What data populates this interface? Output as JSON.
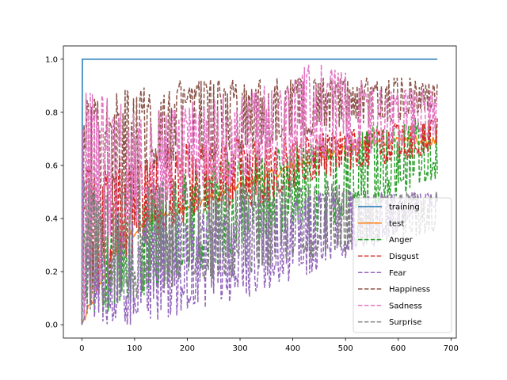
{
  "chart_data": {
    "type": "line",
    "title": "",
    "xlabel": "",
    "ylabel": "",
    "xlim": [
      -35,
      710
    ],
    "ylim": [
      -0.05,
      1.05
    ],
    "x_ticks": [
      0,
      100,
      200,
      300,
      400,
      500,
      600,
      700
    ],
    "y_ticks": [
      0.0,
      0.2,
      0.4,
      0.6,
      0.8,
      1.0
    ],
    "x_tick_labels": [
      "0",
      "100",
      "200",
      "300",
      "400",
      "500",
      "600",
      "700"
    ],
    "y_tick_labels": [
      "0.0",
      "0.2",
      "0.4",
      "0.6",
      "0.8",
      "1.0"
    ],
    "grid": false,
    "legend_position": "lower right",
    "n_points": 675,
    "series": [
      {
        "name": "training",
        "color": "#1f77b4",
        "dash": false,
        "points": [
          [
            0,
            0.0
          ],
          [
            1,
            1.0
          ],
          [
            674,
            1.0
          ]
        ]
      },
      {
        "name": "test",
        "color": "#ff7f0e",
        "dash": false,
        "points": [
          [
            0,
            0.0
          ],
          [
            2,
            0.3
          ],
          [
            10,
            0.4
          ],
          [
            50,
            0.45
          ],
          [
            100,
            0.5
          ],
          [
            200,
            0.55
          ],
          [
            300,
            0.6
          ],
          [
            400,
            0.65
          ],
          [
            500,
            0.68
          ],
          [
            600,
            0.7
          ],
          [
            674,
            0.69
          ]
        ]
      },
      {
        "name": "Anger",
        "color": "#2ca02c",
        "dash": true,
        "noise": {
          "low": [
            0.0,
            0.1,
            0.2,
            0.3,
            0.35,
            0.45,
            0.55
          ],
          "high": [
            0.4,
            0.5,
            0.6,
            0.65,
            0.7,
            0.75,
            0.8
          ]
        }
      },
      {
        "name": "Disgust",
        "color": "#d62728",
        "dash": true,
        "noise": {
          "low": [
            0.0,
            0.3,
            0.4,
            0.45,
            0.55,
            0.6,
            0.65
          ],
          "high": [
            0.6,
            0.65,
            0.7,
            0.7,
            0.72,
            0.75,
            0.78
          ]
        }
      },
      {
        "name": "Fear",
        "color": "#9467bd",
        "dash": true,
        "noise": {
          "low": [
            0.0,
            0.0,
            0.05,
            0.1,
            0.2,
            0.3,
            0.45
          ],
          "high": [
            0.3,
            0.4,
            0.45,
            0.5,
            0.5,
            0.5,
            0.5
          ]
        }
      },
      {
        "name": "Happiness",
        "color": "#8c564b",
        "dash": true,
        "noise": {
          "low": [
            0.0,
            0.55,
            0.6,
            0.65,
            0.7,
            0.75,
            0.8
          ],
          "high": [
            0.85,
            0.9,
            0.93,
            0.93,
            0.93,
            0.93,
            0.93
          ]
        }
      },
      {
        "name": "Sadness",
        "color": "#e377c2",
        "dash": true,
        "noise": {
          "low": [
            0.0,
            0.4,
            0.5,
            0.55,
            0.6,
            0.65,
            0.7
          ],
          "high": [
            0.9,
            0.8,
            0.85,
            0.9,
            1.0,
            0.9,
            0.88
          ]
        }
      },
      {
        "name": "Surprise",
        "color": "#7f7f7f",
        "dash": true,
        "noise": {
          "low": [
            0.0,
            0.1,
            0.15,
            0.2,
            0.25,
            0.3,
            0.35
          ],
          "high": [
            0.55,
            0.55,
            0.55,
            0.55,
            0.55,
            0.5,
            0.5
          ]
        }
      }
    ]
  }
}
